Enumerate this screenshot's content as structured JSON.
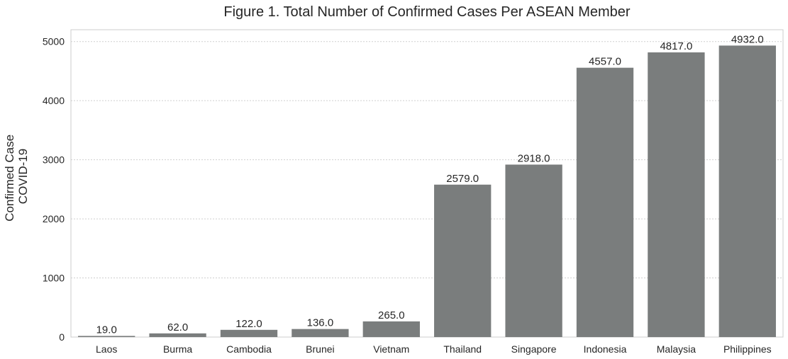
{
  "chart_data": {
    "type": "bar",
    "title": "Figure 1. Total Number of Confirmed Cases Per ASEAN Member",
    "xlabel": "",
    "ylabel_lines": [
      "Confirmed Case",
      "COVID-19"
    ],
    "categories": [
      "Laos",
      "Burma",
      "Cambodia",
      "Brunei",
      "Vietnam",
      "Thailand",
      "Singapore",
      "Indonesia",
      "Malaysia",
      "Philippines"
    ],
    "values": [
      19.0,
      62.0,
      122.0,
      136.0,
      265.0,
      2579.0,
      2918.0,
      4557.0,
      4817.0,
      4932.0
    ],
    "data_labels": [
      "19.0",
      "62.0",
      "122.0",
      "136.0",
      "265.0",
      "2579.0",
      "2918.0",
      "4557.0",
      "4817.0",
      "4932.0"
    ],
    "yticks": [
      0,
      1000,
      2000,
      3000,
      4000,
      5000
    ],
    "ylim": [
      0,
      5200
    ],
    "grid": true,
    "bar_color": "#7a7d7d"
  }
}
